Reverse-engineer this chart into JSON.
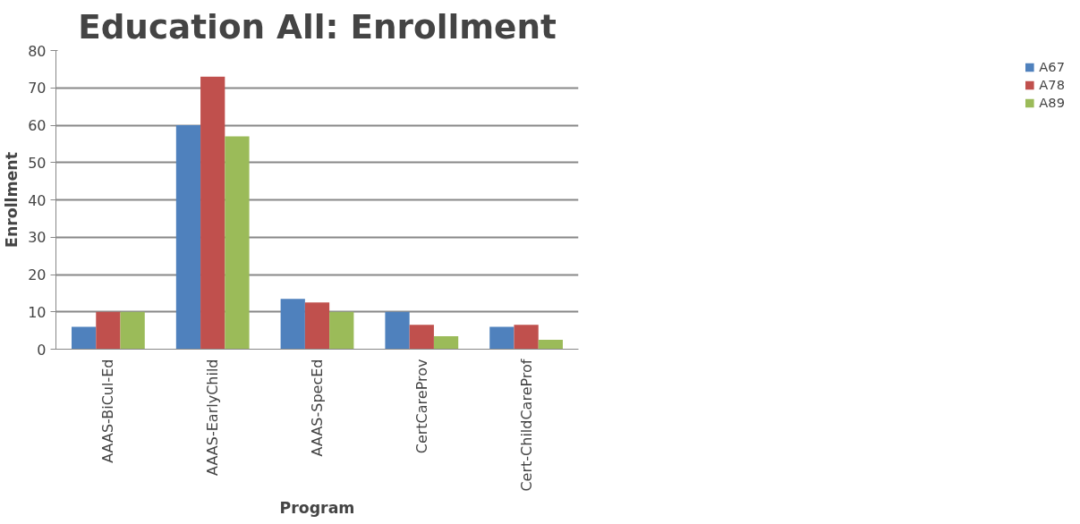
{
  "chart_data": {
    "type": "bar",
    "title": "Education All: Enrollment",
    "xlabel": "Program",
    "ylabel": "Enrollment",
    "categories": [
      "AAAS-BiCul-Ed",
      "AAAS-EarlyChild",
      "AAAS-SpecEd",
      "CertCareProv",
      "Cert-ChildCareProf"
    ],
    "series": [
      {
        "name": "A67",
        "color": "#4f81bd",
        "values": [
          6,
          60,
          13.5,
          10,
          6
        ]
      },
      {
        "name": "A78",
        "color": "#c0504d",
        "values": [
          10,
          73,
          12.5,
          6.5,
          6.5
        ]
      },
      {
        "name": "A89",
        "color": "#9bbb59",
        "values": [
          10,
          57,
          10,
          3.5,
          2.5
        ]
      }
    ],
    "ylim": [
      0,
      80
    ],
    "yticks": [
      0,
      10,
      20,
      30,
      40,
      50,
      60,
      70,
      80
    ],
    "grid": "y",
    "legend": "right"
  }
}
